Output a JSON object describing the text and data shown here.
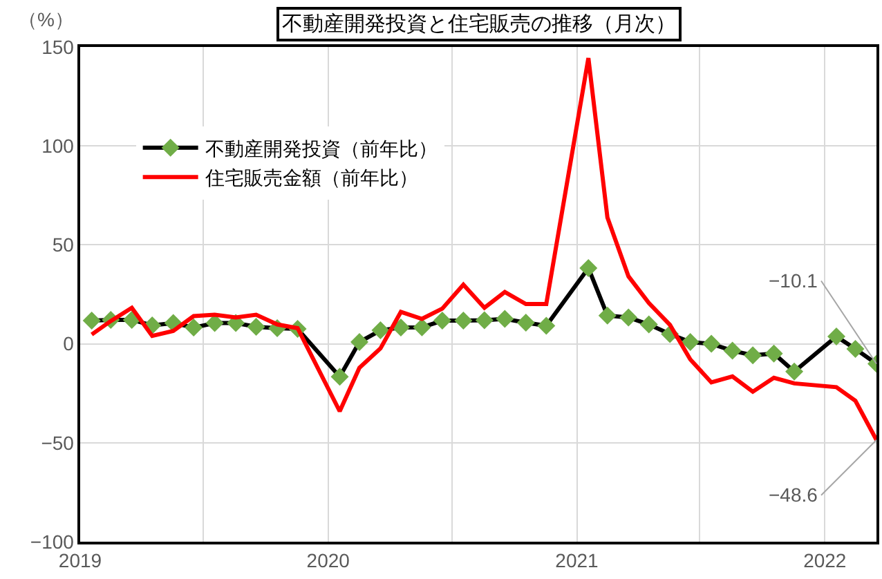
{
  "chart_data": {
    "type": "line",
    "title": "不動産開発投資と住宅販売の推移（月次）",
    "ylabel": "（%）",
    "x": [
      "2019-02",
      "2019-03",
      "2019-04",
      "2019-05",
      "2019-06",
      "2019-07",
      "2019-08",
      "2019-09",
      "2019-10",
      "2019-11",
      "2019-12",
      "2020-02",
      "2020-03",
      "2020-04",
      "2020-05",
      "2020-06",
      "2020-07",
      "2020-08",
      "2020-09",
      "2020-10",
      "2020-11",
      "2020-12",
      "2021-02",
      "2021-03",
      "2021-04",
      "2021-05",
      "2021-06",
      "2021-07",
      "2021-08",
      "2021-09",
      "2021-10",
      "2021-11",
      "2021-12",
      "2022-02",
      "2022-03",
      "2022-04"
    ],
    "series": [
      {
        "name": "不動産開発投資（前年比）",
        "color": "#000000",
        "marker": "diamond",
        "colors": [
          "#70ad47",
          "#70ad47",
          "#70ad47",
          "#70ad47",
          "#70ad47",
          "#70ad47",
          "#70ad47",
          "#70ad47",
          "#70ad47",
          "#70ad47",
          "#70ad47",
          "#70ad47",
          "#70ad47",
          "#70ad47",
          "#70ad47",
          "#70ad47",
          "#70ad47",
          "#70ad47",
          "#70ad47",
          "#70ad47",
          "#70ad47",
          "#70ad47",
          "#70ad47",
          "#70ad47",
          "#70ad47",
          "#70ad47",
          "#70ad47",
          "#70ad47",
          "#70ad47",
          "#70ad47",
          "#70ad47",
          "#70ad47",
          "#70ad47",
          "#70ad47",
          "#70ad47",
          "#70ad47"
        ],
        "values": [
          11.7,
          12.1,
          12.1,
          9.3,
          10.5,
          8.2,
          10.5,
          10.5,
          8.6,
          7.9,
          7.5,
          -16.6,
          0.9,
          6.8,
          8.2,
          8.3,
          11.7,
          11.7,
          11.9,
          12.6,
          10.7,
          9.1,
          38.3,
          14.3,
          13.3,
          9.8,
          4.9,
          0.9,
          0,
          -3.5,
          -5.8,
          -4.9,
          -14.0,
          3.7,
          -2.6,
          -10.1
        ]
      },
      {
        "name": "住宅販売金額（前年比）",
        "color": "#ff0000",
        "marker": "none",
        "values": [
          4.7,
          11.5,
          18.2,
          4.0,
          6.5,
          14.0,
          14.7,
          13.3,
          14.7,
          9.8,
          7.9,
          -34.1,
          -12.1,
          -2.3,
          16.1,
          12.6,
          17.8,
          29.9,
          18.2,
          26.2,
          20.1,
          20.1,
          144.4,
          63.8,
          34.1,
          20.6,
          9.6,
          -7.9,
          -19.5,
          -16.5,
          -24.2,
          -17.2,
          -20.0,
          -21.9,
          -28.8,
          -48.6
        ]
      }
    ],
    "xlim": [
      "2019-01-15",
      "2022-04-01"
    ],
    "xticks": [
      {
        "value": "2019-01-15",
        "label": "2019"
      },
      {
        "value": "2019-07-15",
        "label": null
      },
      {
        "value": "2020-01-15",
        "label": "2020"
      },
      {
        "value": "2020-07-15",
        "label": null
      },
      {
        "value": "2021-01-15",
        "label": "2021"
      },
      {
        "value": "2021-07-15",
        "label": null
      },
      {
        "value": "2022-01-15",
        "label": "2022"
      }
    ],
    "ylim": [
      -100,
      150
    ],
    "yticks": [
      -100,
      -50,
      0,
      50,
      100,
      150
    ],
    "grid": true,
    "legend": "top left",
    "line_style": "solid",
    "annotations": [
      {
        "text": "−10.1",
        "x": "2022-04",
        "y": -10.1
      },
      {
        "text": "−48.6",
        "x": "2022-04",
        "y": -48.6
      }
    ]
  }
}
